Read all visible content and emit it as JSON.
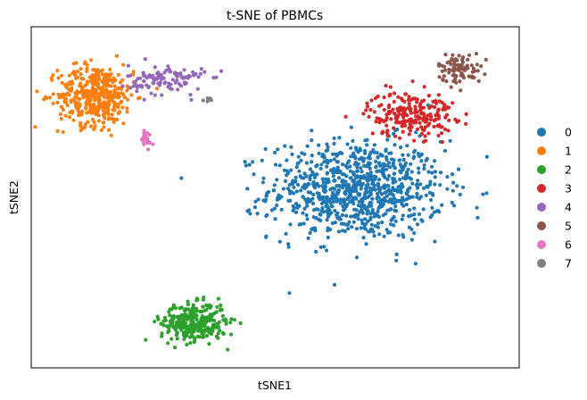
{
  "chart_data": {
    "type": "scatter",
    "title": "t-SNE of PBMCs",
    "xlabel": "tSNE1",
    "ylabel": "tSNE2",
    "xlim": [
      -45,
      45
    ],
    "ylim": [
      -45,
      45
    ],
    "grid": false,
    "legend": "right",
    "series": [
      {
        "name": "0",
        "color": "#1f77b4",
        "center": [
          15,
          2
        ],
        "spread": [
          16,
          13
        ],
        "count": 900
      },
      {
        "name": "1",
        "color": "#ff7f0e",
        "center": [
          -33,
          27
        ],
        "spread": [
          7,
          8
        ],
        "count": 420
      },
      {
        "name": "2",
        "color": "#2ca02c",
        "center": [
          -15,
          -33
        ],
        "spread": [
          6,
          5
        ],
        "count": 320
      },
      {
        "name": "3",
        "color": "#d62728",
        "center": [
          25,
          22
        ],
        "spread": [
          8,
          6
        ],
        "count": 220
      },
      {
        "name": "4",
        "color": "#9467bd",
        "center": [
          -20,
          31
        ],
        "spread": [
          7,
          4
        ],
        "count": 110
      },
      {
        "name": "5",
        "color": "#8c564b",
        "center": [
          34,
          34
        ],
        "spread": [
          4,
          4
        ],
        "count": 85
      },
      {
        "name": "6",
        "color": "#e377c2",
        "center": [
          -24,
          15
        ],
        "spread": [
          1.5,
          3
        ],
        "count": 20
      },
      {
        "name": "7",
        "color": "#7f7f7f",
        "center": [
          -12,
          26
        ],
        "spread": [
          1.5,
          0.5
        ],
        "count": 8
      }
    ]
  }
}
